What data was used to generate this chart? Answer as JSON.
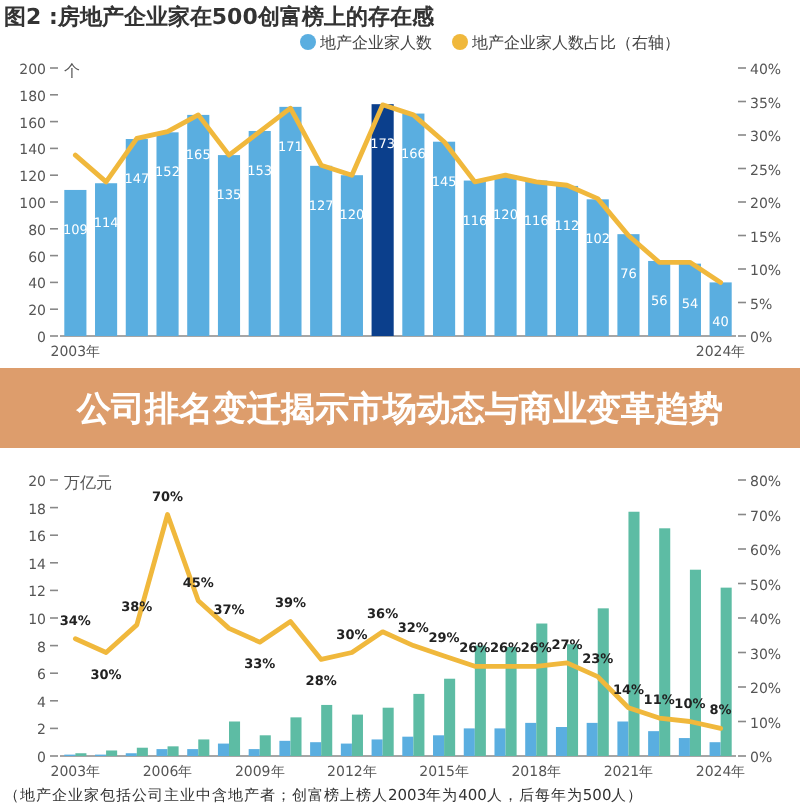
{
  "chart_data": [
    {
      "type": "bar",
      "title": "图2 :房地产企业家在500创富榜上的存在感",
      "ylabel": "个",
      "legend": "top right",
      "categories": [
        "2003年",
        null,
        null,
        null,
        null,
        null,
        null,
        null,
        null,
        null,
        null,
        null,
        null,
        null,
        null,
        null,
        null,
        null,
        null,
        null,
        null,
        "2024年"
      ],
      "ylim": [
        0,
        200
      ],
      "yticks": [
        0,
        20,
        40,
        60,
        80,
        100,
        120,
        140,
        160,
        180,
        200
      ],
      "y2lim": [
        0,
        40
      ],
      "y2ticks": [
        {
          "value": 0,
          "label": "0%"
        },
        {
          "value": 5,
          "label": "5%"
        },
        {
          "value": 10,
          "label": "10%"
        },
        {
          "value": 15,
          "label": "15%"
        },
        {
          "value": 20,
          "label": "20%"
        },
        {
          "value": 25,
          "label": "25%"
        },
        {
          "value": 30,
          "label": "30%"
        },
        {
          "value": 35,
          "label": "35%"
        },
        {
          "value": 40,
          "label": "40%"
        }
      ],
      "series": [
        {
          "name": "地产企业家人数",
          "type": "bar",
          "color": "#5aaee0",
          "colors": [
            "#5aaee0",
            "#5aaee0",
            "#5aaee0",
            "#5aaee0",
            "#5aaee0",
            "#5aaee0",
            "#5aaee0",
            "#5aaee0",
            "#5aaee0",
            "#5aaee0",
            "#0b3f8c",
            "#5aaee0",
            "#5aaee0",
            "#5aaee0",
            "#5aaee0",
            "#5aaee0",
            "#5aaee0",
            "#5aaee0",
            "#5aaee0",
            "#5aaee0",
            "#5aaee0",
            "#5aaee0"
          ],
          "values": [
            109,
            114,
            147,
            152,
            165,
            135,
            153,
            171,
            127,
            120,
            173,
            166,
            145,
            116,
            120,
            116,
            112,
            102,
            76,
            56,
            54,
            40
          ],
          "value_labels": [
            "109",
            "114",
            "147",
            "152",
            "165",
            "135",
            "153",
            "171",
            "127",
            "120",
            "173",
            "166",
            "145",
            "116",
            "120",
            "116",
            "112",
            "102",
            "76",
            "56",
            "54",
            "40"
          ]
        },
        {
          "name": "地产企业家人数占比（右轴）",
          "type": "line",
          "axis": "y2",
          "color": "#f0b83c",
          "values": [
            27,
            23,
            29.5,
            30.5,
            33,
            27,
            30.5,
            34,
            25.5,
            24,
            34.5,
            33,
            29,
            23,
            24,
            23,
            22.5,
            20.5,
            15,
            11,
            11,
            8
          ]
        }
      ]
    },
    {
      "type": "other",
      "title": "公司排名变迁揭示市场动态与商业变革趋势"
    },
    {
      "type": "bar",
      "ylabel": "万亿元",
      "categories": [
        "2003年",
        null,
        null,
        "2006年",
        null,
        null,
        "2009年",
        null,
        null,
        "2012年",
        null,
        null,
        "2015年",
        null,
        null,
        "2018年",
        null,
        null,
        "2021年",
        null,
        null,
        "2024年"
      ],
      "ylim": [
        0,
        20
      ],
      "yticks": [
        0,
        2,
        4,
        6,
        8,
        10,
        12,
        14,
        16,
        18,
        20
      ],
      "y2lim": [
        0,
        80
      ],
      "y2ticks": [
        {
          "value": 0,
          "label": "0%"
        },
        {
          "value": 10,
          "label": "10%"
        },
        {
          "value": 20,
          "label": "20%"
        },
        {
          "value": 30,
          "label": "30%"
        },
        {
          "value": 40,
          "label": "40%"
        },
        {
          "value": 50,
          "label": "50%"
        },
        {
          "value": 60,
          "label": "60%"
        },
        {
          "value": 70,
          "label": "70%"
        },
        {
          "value": 80,
          "label": "80%"
        }
      ],
      "annotations": [
        "（地产企业家包括公司主业中含地产者；创富榜上榜人2003年为400人，后每年为500人）"
      ],
      "series": [
        {
          "type": "bar",
          "color": "#5aaee0",
          "values": [
            0.1,
            0.1,
            0.2,
            0.5,
            0.5,
            0.9,
            0.5,
            1.1,
            1.0,
            0.9,
            1.2,
            1.4,
            1.5,
            2.0,
            2.0,
            2.4,
            2.1,
            2.4,
            2.5,
            1.8,
            1.3,
            1.0
          ]
        },
        {
          "type": "bar",
          "color": "#5dbca4",
          "values": [
            0.2,
            0.4,
            0.6,
            0.7,
            1.2,
            2.5,
            1.5,
            2.8,
            3.7,
            3.0,
            3.5,
            4.5,
            5.6,
            8.0,
            7.9,
            9.6,
            8.1,
            10.7,
            17.7,
            16.5,
            13.5,
            12.2
          ]
        },
        {
          "type": "line",
          "axis": "y2",
          "color": "#f0b83c",
          "values": [
            34,
            30,
            38,
            70,
            45,
            37,
            33,
            39,
            28,
            30,
            36,
            32,
            29,
            26,
            26,
            26,
            27,
            23,
            14,
            11,
            10,
            8
          ],
          "value_labels": [
            "34%",
            "30%",
            "38%",
            "70%",
            "45%",
            "37%",
            "33%",
            "39%",
            "28%",
            "30%",
            "36%",
            "32%",
            "29%",
            "26%",
            "26%",
            "26%",
            "27%",
            "23%",
            "14%",
            "11%",
            "10%",
            "8%"
          ]
        }
      ]
    }
  ]
}
